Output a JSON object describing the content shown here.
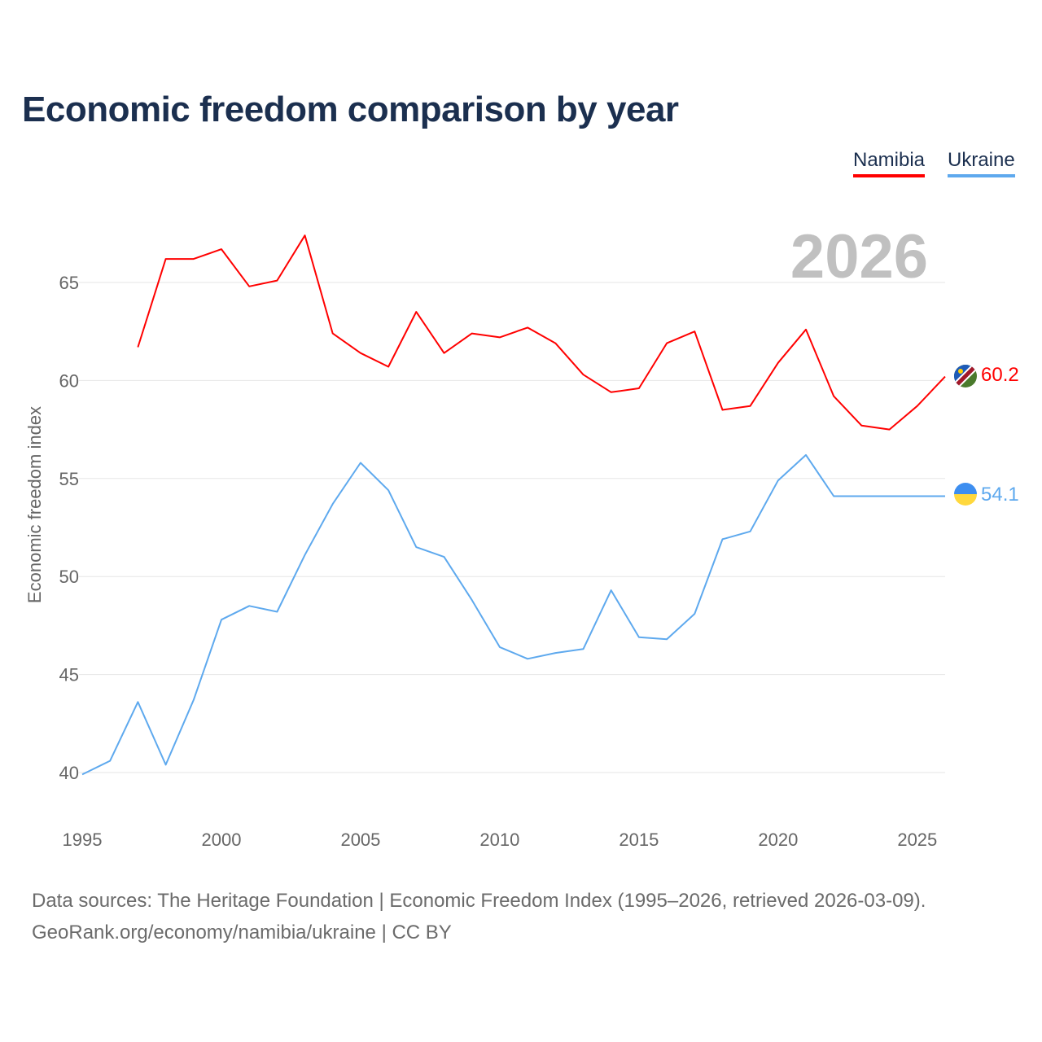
{
  "title": "Economic freedom comparison by year",
  "legend": [
    {
      "name": "Namibia",
      "color": "#ff0000"
    },
    {
      "name": "Ukraine",
      "color": "#5ea9ee"
    }
  ],
  "footer": {
    "line1": "Data sources: The Heritage Foundation | Economic Freedom Index (1995–2026, retrieved 2026-03-09).",
    "line2": "GeoRank.org/economy/namibia/ukraine | CC BY"
  },
  "chart_data": {
    "type": "line",
    "title": "Economic freedom comparison by year",
    "year_label": "2026",
    "xlabel": "",
    "ylabel": "Economic freedom index",
    "xlim": [
      1995,
      2026
    ],
    "ylim": [
      40,
      67.5
    ],
    "x_ticks": [
      1995,
      2000,
      2005,
      2010,
      2015,
      2020,
      2025
    ],
    "y_ticks": [
      40,
      45,
      50,
      55,
      60,
      65
    ],
    "grid": true,
    "legend_position": "top-right",
    "x": [
      1995,
      1996,
      1997,
      1998,
      1999,
      2000,
      2001,
      2002,
      2003,
      2004,
      2005,
      2006,
      2007,
      2008,
      2009,
      2010,
      2011,
      2012,
      2013,
      2014,
      2015,
      2016,
      2017,
      2018,
      2019,
      2020,
      2021,
      2022,
      2023,
      2024,
      2025,
      2026
    ],
    "series": [
      {
        "name": "Namibia",
        "color": "#ff0000",
        "end_label": "60.2",
        "values": [
          null,
          null,
          61.7,
          66.2,
          66.2,
          66.7,
          64.8,
          65.1,
          67.4,
          62.4,
          61.4,
          60.7,
          63.5,
          61.4,
          62.4,
          62.2,
          62.7,
          61.9,
          60.3,
          59.4,
          59.6,
          61.9,
          62.5,
          58.5,
          58.7,
          60.9,
          62.6,
          59.2,
          57.7,
          57.5,
          58.7,
          60.2
        ]
      },
      {
        "name": "Ukraine",
        "color": "#5ea9ee",
        "end_label": "54.1",
        "values": [
          39.9,
          40.6,
          43.6,
          40.4,
          43.7,
          47.8,
          48.5,
          48.2,
          51.1,
          53.7,
          55.8,
          54.4,
          51.5,
          51.0,
          48.8,
          46.4,
          45.8,
          46.1,
          46.3,
          49.3,
          46.9,
          46.8,
          48.1,
          51.9,
          52.3,
          54.9,
          56.2,
          54.1,
          54.1,
          54.1,
          54.1,
          54.1
        ]
      }
    ]
  }
}
